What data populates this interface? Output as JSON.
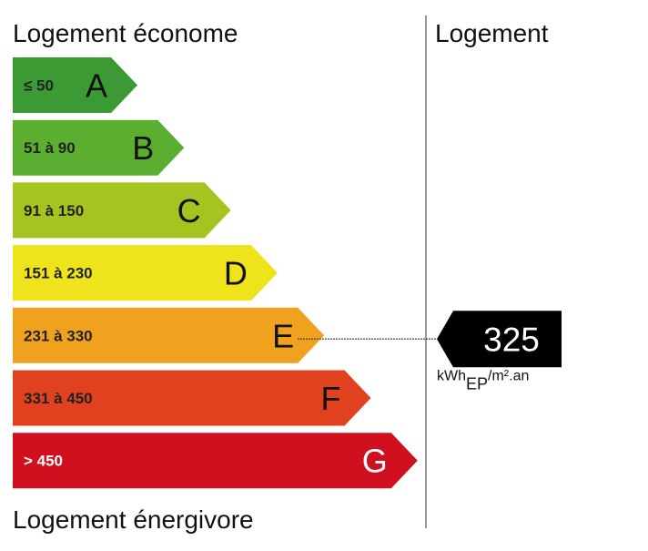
{
  "top_label": "Logement économe",
  "bottom_label": "Logement énergivore",
  "column_title": "Logement",
  "classes": [
    {
      "range": "≤ 50",
      "letter": "A",
      "color": "#3c9a35"
    },
    {
      "range": "51 à 90",
      "letter": "B",
      "color": "#5cae31"
    },
    {
      "range": "91 à 150",
      "letter": "C",
      "color": "#a5c420"
    },
    {
      "range": "151 à 230",
      "letter": "D",
      "color": "#efe31b"
    },
    {
      "range": "231 à 330",
      "letter": "E",
      "color": "#f0a21f"
    },
    {
      "range": "331 à 450",
      "letter": "F",
      "color": "#e0421f"
    },
    {
      "range": "> 450",
      "letter": "G",
      "color": "#d0101e"
    }
  ],
  "value": 325,
  "unit": {
    "main": "kWh",
    "sub": "EP",
    "rest": "/m².an"
  }
}
